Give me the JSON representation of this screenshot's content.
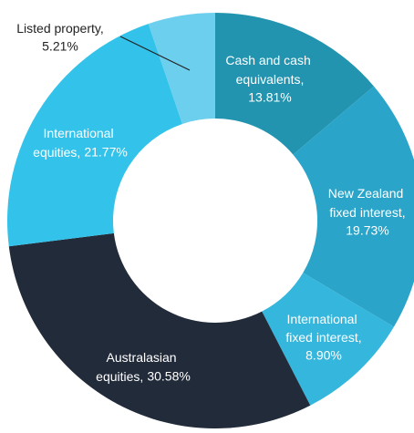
{
  "chart_data": {
    "type": "donut",
    "categories": [
      "Cash and cash equivalents,",
      "New Zealand fixed interest,",
      "International fixed interest,",
      "Australasian equities,",
      "International equities,",
      "Listed property,"
    ],
    "values": [
      13.81,
      19.73,
      8.9,
      30.58,
      21.77,
      5.21
    ],
    "value_labels": [
      "13.81%",
      "19.73%",
      "8.90%",
      "30.58%",
      "21.77%",
      "5.21%"
    ],
    "colors": [
      "#2394b0",
      "#2aa5c9",
      "#35b6dc",
      "#222b3a",
      "#33c3ea",
      "#6ccfee"
    ]
  }
}
